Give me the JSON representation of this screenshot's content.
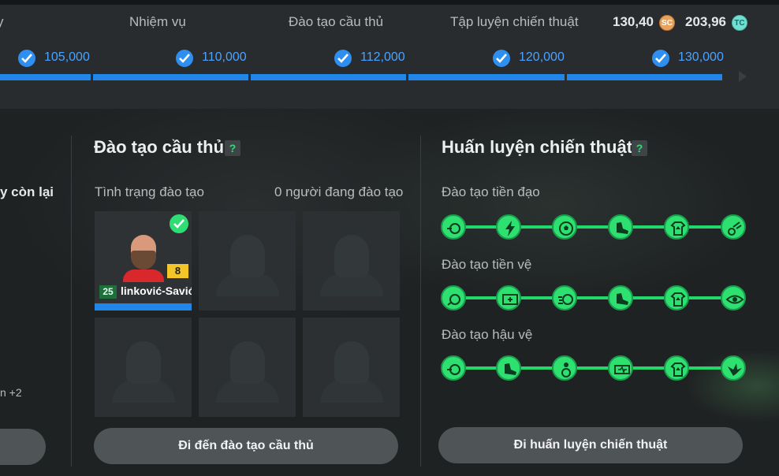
{
  "top_tabs": [
    {
      "label": "y"
    },
    {
      "label": "Nhiệm vụ"
    },
    {
      "label": "Đào tạo cầu thủ"
    },
    {
      "label": "Tập luyện chiến thuật"
    }
  ],
  "currency": {
    "sc_value": "130,40",
    "sc_icon_text": "SC",
    "tc_value": "203,96",
    "tc_icon_text": "TC"
  },
  "milestones": [
    "105,000",
    "110,000",
    "112,000",
    "120,000",
    "130,000"
  ],
  "left_panel": {
    "cut_text": "y còn lại",
    "cut_small": "n +2"
  },
  "player_training": {
    "title": "Đào tạo cầu thủ",
    "help": "?",
    "status_label": "Tình trạng đào tạo",
    "count_label": "0 người đang đào tạo",
    "player": {
      "ovr": "25",
      "level": "8",
      "name": "linković-Savić"
    },
    "button": "Đi đến đào tạo cầu thủ"
  },
  "tactical_training": {
    "title": "Huấn luyện chiến thuật",
    "help": "?",
    "tracks": [
      {
        "label": "Đào tạo tiền đạo",
        "icons": [
          "shooting-icon",
          "lightning-icon",
          "ball-icon",
          "boot-icon",
          "jersey-up-icon",
          "dribble-icon"
        ]
      },
      {
        "label": "Đào tạo tiền vệ",
        "icons": [
          "pass-icon",
          "goal-target-icon",
          "ball-speed-icon",
          "boot-icon",
          "jersey-up-icon",
          "eye-icon"
        ]
      },
      {
        "label": "Đào tạo hậu vệ",
        "icons": [
          "shooting-icon",
          "boot-icon",
          "player-ball-icon",
          "stamina-icon",
          "jersey-up-icon",
          "bird-icon"
        ]
      }
    ],
    "button": "Đi huấn luyện chiến thuật"
  },
  "colors": {
    "accent_blue": "#2186ea",
    "accent_green": "#2ee070",
    "gold": "#f2c628"
  }
}
